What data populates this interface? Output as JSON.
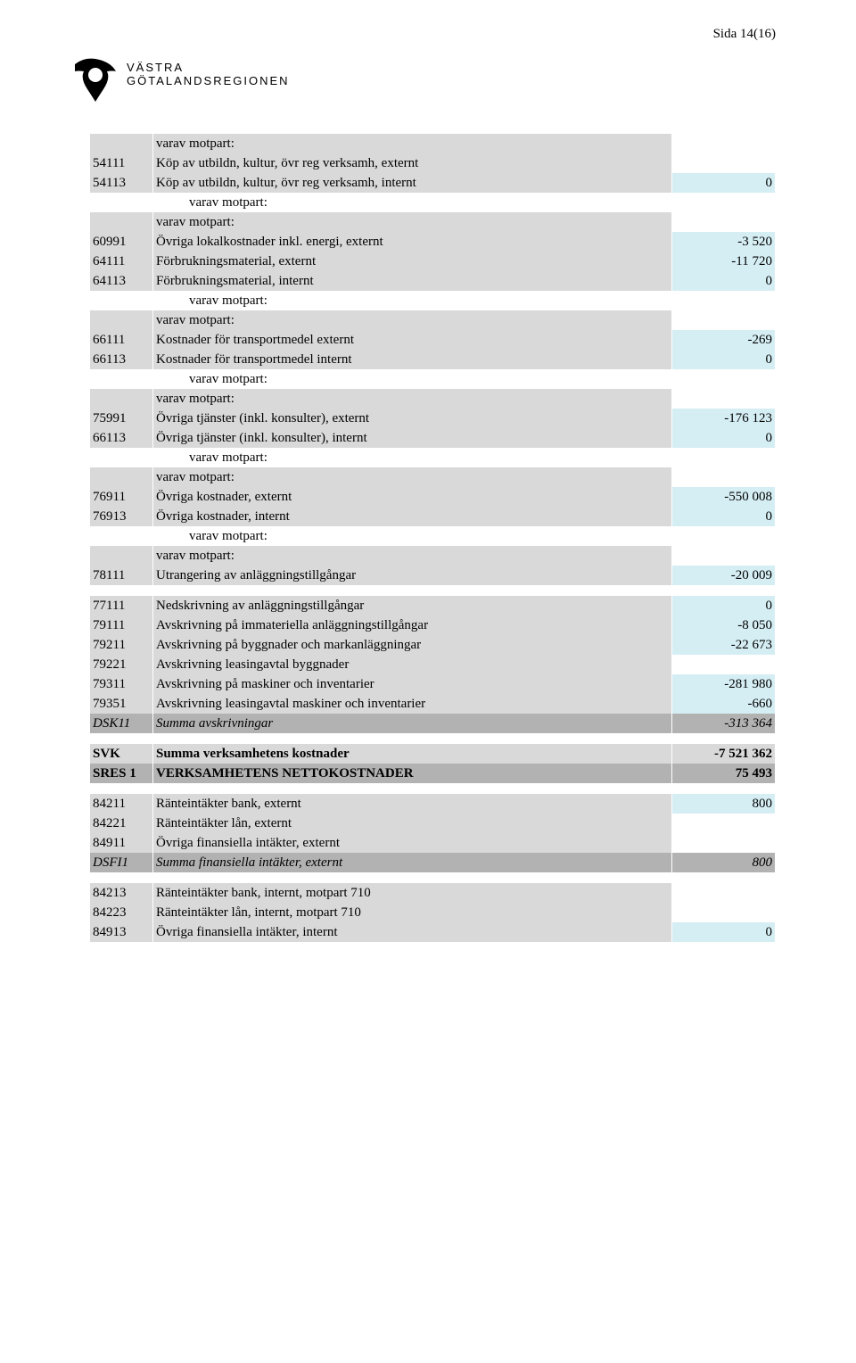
{
  "page_label": "Sida 14(16)",
  "logo_line1": "VÄSTRA",
  "logo_line2": "GÖTALANDSREGIONEN",
  "colors": {
    "row_gray": "#d9d9d9",
    "row_darkgray": "#b2b2b2",
    "value_cyan": "#d5eef4",
    "text": "#000000",
    "background": "#ffffff"
  },
  "rows": [
    {
      "style": "gray",
      "code": "",
      "desc": "varav motpart:",
      "val": ""
    },
    {
      "style": "gray",
      "code": "54111",
      "desc": "Köp av utbildn, kultur, övr reg verksamh, externt",
      "val": ""
    },
    {
      "style": "gray cyan",
      "code": "54113",
      "desc": "Köp av utbildn, kultur, övr reg verksamh, internt",
      "val": "0"
    },
    {
      "style": "",
      "code": "",
      "desc": "varav motpart:",
      "val": "",
      "indent": true
    },
    {
      "style": "gray",
      "code": "",
      "desc": "varav motpart:",
      "val": ""
    },
    {
      "style": "gray cyan",
      "code": "60991",
      "desc": "Övriga lokalkostnader inkl. energi, externt",
      "val": "-3 520"
    },
    {
      "style": "gray cyan",
      "code": "64111",
      "desc": "Förbrukningsmaterial, externt",
      "val": "-11 720"
    },
    {
      "style": "gray cyan",
      "code": "64113",
      "desc": "Förbrukningsmaterial, internt",
      "val": "0"
    },
    {
      "style": "",
      "code": "",
      "desc": "varav motpart:",
      "val": "",
      "indent": true
    },
    {
      "style": "gray",
      "code": "",
      "desc": "varav motpart:",
      "val": ""
    },
    {
      "style": "gray cyan",
      "code": "66111",
      "desc": "Kostnader för transportmedel externt",
      "val": "-269"
    },
    {
      "style": "gray cyan",
      "code": "66113",
      "desc": "Kostnader för transportmedel internt",
      "val": "0"
    },
    {
      "style": "",
      "code": "",
      "desc": "varav motpart:",
      "val": "",
      "indent": true
    },
    {
      "style": "gray",
      "code": "",
      "desc": "varav motpart:",
      "val": ""
    },
    {
      "style": "gray cyan",
      "code": "75991",
      "desc": "Övriga tjänster (inkl. konsulter), externt",
      "val": "-176 123"
    },
    {
      "style": "gray cyan",
      "code": "66113",
      "desc": "Övriga tjänster (inkl. konsulter), internt",
      "val": "0"
    },
    {
      "style": "",
      "code": "",
      "desc": "varav motpart:",
      "val": "",
      "indent": true
    },
    {
      "style": "gray",
      "code": "",
      "desc": "varav motpart:",
      "val": ""
    },
    {
      "style": "gray cyan",
      "code": "76911",
      "desc": "Övriga kostnader, externt",
      "val": "-550 008"
    },
    {
      "style": "gray cyan",
      "code": "76913",
      "desc": "Övriga kostnader, internt",
      "val": "0"
    },
    {
      "style": "",
      "code": "",
      "desc": "varav motpart:",
      "val": "",
      "indent": true
    },
    {
      "style": "gray",
      "code": "",
      "desc": "varav motpart:",
      "val": ""
    },
    {
      "style": "gray cyan",
      "code": "78111",
      "desc": "Utrangering av anläggningstillgångar",
      "val": "-20 009"
    },
    {
      "style": "spacer"
    },
    {
      "style": "gray cyan",
      "code": "77111",
      "desc": "Nedskrivning av anläggningstillgångar",
      "val": "0"
    },
    {
      "style": "gray cyan",
      "code": "79111",
      "desc": "Avskrivning på immateriella anläggningstillgångar",
      "val": "-8 050"
    },
    {
      "style": "gray cyan",
      "code": "79211",
      "desc": "Avskrivning på byggnader och markanläggningar",
      "val": "-22 673"
    },
    {
      "style": "gray",
      "code": "79221",
      "desc": "Avskrivning leasingavtal byggnader",
      "val": ""
    },
    {
      "style": "gray cyan",
      "code": "79311",
      "desc": "Avskrivning på maskiner och inventarier",
      "val": "-281 980"
    },
    {
      "style": "gray cyan",
      "code": "79351",
      "desc": "Avskrivning leasingavtal maskiner och inventarier",
      "val": "-660"
    },
    {
      "style": "darkgray italic",
      "code": "DSK11",
      "desc": "Summa avskrivningar",
      "val": "-313 364"
    },
    {
      "style": "spacer"
    },
    {
      "style": "allgray bold",
      "code": "SVK",
      "desc": "Summa verksamhetens kostnader",
      "val": "-7 521 362"
    },
    {
      "style": "darkgray bold",
      "code": "SRES 1",
      "desc": "VERKSAMHETENS NETTOKOSTNADER",
      "val": "75 493"
    },
    {
      "style": "spacer"
    },
    {
      "style": "gray cyan",
      "code": "84211",
      "desc": "Ränteintäkter bank, externt",
      "val": "800"
    },
    {
      "style": "gray",
      "code": "84221",
      "desc": "Ränteintäkter lån, externt",
      "val": ""
    },
    {
      "style": "gray",
      "code": "84911",
      "desc": "Övriga finansiella intäkter, externt",
      "val": ""
    },
    {
      "style": "darkgray italic",
      "code": "DSFI1",
      "desc": "Summa finansiella intäkter, externt",
      "val": "800"
    },
    {
      "style": "spacer"
    },
    {
      "style": "gray",
      "code": "84213",
      "desc": "Ränteintäkter bank, internt, motpart 710",
      "val": ""
    },
    {
      "style": "gray",
      "code": "84223",
      "desc": "Ränteintäkter lån, internt, motpart 710",
      "val": ""
    },
    {
      "style": "gray cyan",
      "code": "84913",
      "desc": "Övriga finansiella intäkter, internt",
      "val": "0"
    }
  ]
}
